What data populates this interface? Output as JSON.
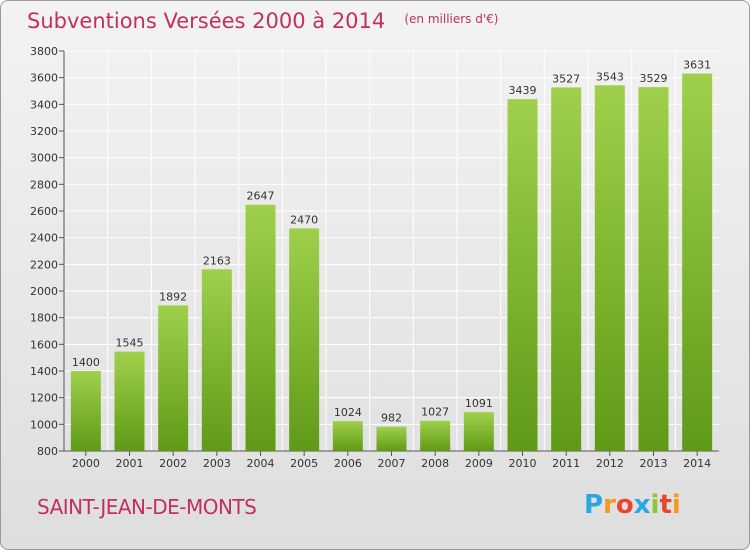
{
  "header": {
    "title": "Subventions Versées 2000 à 2014",
    "subtitle": "(en milliers d'€)"
  },
  "footer": {
    "commune": "SAINT-JEAN-DE-MONTS",
    "brand": {
      "letters": [
        "P",
        "r",
        "o",
        "x",
        "i",
        "t",
        "i"
      ],
      "colors": [
        "#2aa6e0",
        "#f39a1e",
        "#e8462f",
        "#2aa6e0",
        "#8bc63e",
        "#e8462f",
        "#f39a1e"
      ]
    }
  },
  "colors": {
    "bar_top": "#9fd04c",
    "bar_bottom": "#5f9a16",
    "title": "#c2305b",
    "grid": "#ffffff"
  },
  "chart_data": {
    "type": "bar",
    "title": "Subventions Versées 2000 à 2014",
    "subtitle": "(en milliers d'€)",
    "categories": [
      "2000",
      "2001",
      "2002",
      "2003",
      "2004",
      "2005",
      "2006",
      "2007",
      "2008",
      "2009",
      "2010",
      "2011",
      "2012",
      "2013",
      "2014"
    ],
    "values": [
      1400,
      1545,
      1892,
      2163,
      2647,
      2470,
      1024,
      982,
      1027,
      1091,
      3439,
      3527,
      3543,
      3529,
      3631
    ],
    "xlabel": "",
    "ylabel": "",
    "ylim": [
      800,
      3800
    ],
    "yticks": [
      800,
      1000,
      1200,
      1400,
      1600,
      1800,
      2000,
      2200,
      2400,
      2600,
      2800,
      3000,
      3200,
      3400,
      3600,
      3800
    ],
    "grid": true,
    "legend": "none"
  }
}
